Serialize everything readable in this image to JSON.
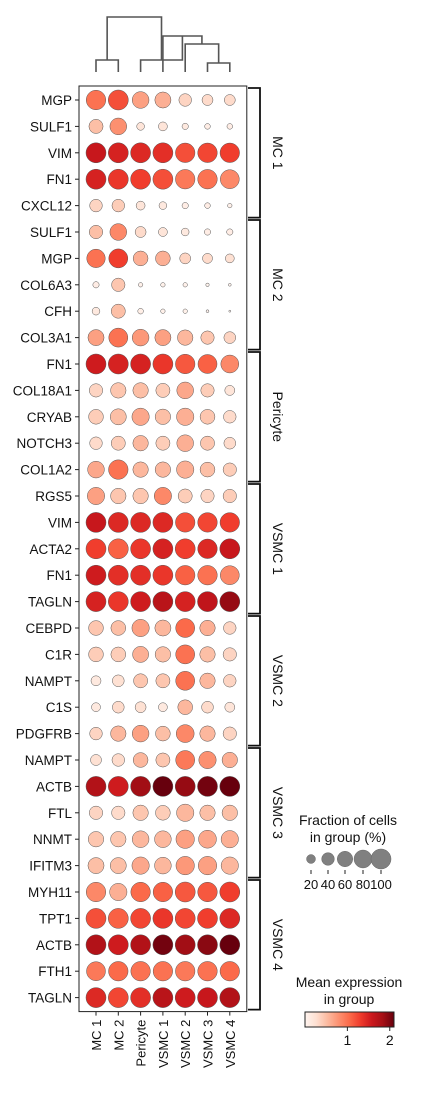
{
  "chart_data": {
    "type": "dotplot",
    "title": "",
    "columns": [
      "MC 1",
      "MC 2",
      "Pericyte",
      "VSMC 1",
      "VSMC 2",
      "VSMC 3",
      "VSMC 4"
    ],
    "dendrogram": "((MC 1, MC 2), (Pericyte, (VSMC 1, (VSMC 2, (VSMC 3, VSMC 4)))))",
    "groups": [
      {
        "name": "MC 1",
        "genes": [
          "MGP",
          "SULF1",
          "VIM",
          "FN1",
          "CXCL12"
        ]
      },
      {
        "name": "MC 2",
        "genes": [
          "SULF1",
          "MGP",
          "COL6A3",
          "CFH",
          "COL3A1"
        ]
      },
      {
        "name": "Pericyte",
        "genes": [
          "FN1",
          "COL18A1",
          "CRYAB",
          "NOTCH3",
          "COL1A2"
        ]
      },
      {
        "name": "VSMC 1",
        "genes": [
          "RGS5",
          "VIM",
          "ACTA2",
          "FN1",
          "TAGLN"
        ]
      },
      {
        "name": "VSMC 2",
        "genes": [
          "CEBPD",
          "C1R",
          "NAMPT",
          "C1S",
          "PDGFRB"
        ]
      },
      {
        "name": "VSMC 3",
        "genes": [
          "NAMPT",
          "ACTB",
          "FTL",
          "NNMT",
          "IFITM3"
        ]
      },
      {
        "name": "VSMC 4",
        "genes": [
          "MYH11",
          "TPT1",
          "ACTB",
          "FTH1",
          "TAGLN"
        ]
      }
    ],
    "fraction_percent": [
      [
        95,
        100,
        70,
        65,
        40,
        30,
        30
      ],
      [
        50,
        70,
        15,
        20,
        10,
        8,
        8
      ],
      [
        100,
        100,
        100,
        100,
        95,
        95,
        95
      ],
      [
        100,
        100,
        100,
        100,
        95,
        95,
        90
      ],
      [
        40,
        40,
        20,
        15,
        10,
        8,
        5
      ],
      [
        45,
        70,
        30,
        20,
        15,
        10,
        10
      ],
      [
        85,
        90,
        55,
        55,
        30,
        25,
        20
      ],
      [
        10,
        45,
        5,
        5,
        5,
        3,
        2
      ],
      [
        15,
        50,
        8,
        5,
        5,
        2,
        1
      ],
      [
        65,
        90,
        70,
        65,
        60,
        45,
        35
      ],
      [
        100,
        100,
        100,
        100,
        95,
        90,
        80
      ],
      [
        45,
        60,
        60,
        50,
        70,
        45,
        25
      ],
      [
        55,
        65,
        75,
        60,
        75,
        55,
        40
      ],
      [
        40,
        50,
        60,
        50,
        70,
        50,
        35
      ],
      [
        70,
        95,
        60,
        60,
        75,
        55,
        45
      ],
      [
        75,
        60,
        60,
        75,
        50,
        45,
        45
      ],
      [
        100,
        100,
        100,
        100,
        95,
        95,
        95
      ],
      [
        100,
        100,
        100,
        100,
        100,
        95,
        100
      ],
      [
        100,
        100,
        100,
        100,
        95,
        95,
        90
      ],
      [
        100,
        100,
        100,
        100,
        100,
        100,
        100
      ],
      [
        55,
        55,
        75,
        65,
        90,
        60,
        40
      ],
      [
        55,
        55,
        65,
        60,
        90,
        60,
        45
      ],
      [
        25,
        35,
        50,
        50,
        90,
        60,
        40
      ],
      [
        20,
        35,
        30,
        20,
        55,
        35,
        25
      ],
      [
        40,
        60,
        70,
        55,
        80,
        60,
        45
      ],
      [
        30,
        40,
        55,
        50,
        90,
        75,
        60
      ],
      [
        100,
        100,
        100,
        100,
        100,
        100,
        100
      ],
      [
        45,
        45,
        60,
        55,
        75,
        60,
        60
      ],
      [
        60,
        60,
        70,
        70,
        85,
        80,
        75
      ],
      [
        65,
        65,
        75,
        70,
        85,
        85,
        75
      ],
      [
        95,
        75,
        95,
        95,
        100,
        95,
        100
      ],
      [
        100,
        100,
        100,
        100,
        100,
        100,
        100
      ],
      [
        100,
        100,
        100,
        100,
        100,
        100,
        100
      ],
      [
        90,
        95,
        95,
        95,
        95,
        95,
        95
      ],
      [
        100,
        100,
        100,
        100,
        100,
        100,
        100
      ]
    ],
    "mean_expression": [
      [
        1.0,
        1.2,
        0.7,
        0.6,
        0.35,
        0.3,
        0.3
      ],
      [
        0.5,
        0.8,
        0.2,
        0.2,
        0.15,
        0.1,
        0.1
      ],
      [
        1.6,
        1.5,
        1.45,
        1.4,
        1.2,
        1.25,
        1.3
      ],
      [
        1.5,
        1.35,
        1.3,
        1.2,
        0.95,
        1.0,
        0.85
      ],
      [
        0.35,
        0.4,
        0.2,
        0.15,
        0.1,
        0.1,
        0.05
      ],
      [
        0.5,
        0.85,
        0.3,
        0.2,
        0.15,
        0.1,
        0.1
      ],
      [
        1.0,
        1.3,
        0.6,
        0.6,
        0.35,
        0.3,
        0.25
      ],
      [
        0.1,
        0.45,
        0.05,
        0.05,
        0.05,
        0.03,
        0.02
      ],
      [
        0.15,
        0.5,
        0.08,
        0.05,
        0.05,
        0.02,
        0.01
      ],
      [
        0.7,
        1.0,
        0.75,
        0.7,
        0.55,
        0.45,
        0.35
      ],
      [
        1.55,
        1.5,
        1.5,
        1.35,
        1.15,
        1.1,
        0.85
      ],
      [
        0.35,
        0.45,
        0.5,
        0.4,
        0.65,
        0.4,
        0.2
      ],
      [
        0.4,
        0.5,
        0.65,
        0.5,
        0.6,
        0.45,
        0.3
      ],
      [
        0.3,
        0.4,
        0.55,
        0.4,
        0.6,
        0.45,
        0.3
      ],
      [
        0.65,
        1.0,
        0.55,
        0.55,
        0.6,
        0.5,
        0.4
      ],
      [
        0.7,
        0.45,
        0.45,
        0.85,
        0.4,
        0.35,
        0.4
      ],
      [
        1.6,
        1.45,
        1.45,
        1.45,
        1.2,
        1.25,
        1.3
      ],
      [
        1.3,
        1.1,
        1.35,
        1.5,
        1.3,
        1.45,
        1.6
      ],
      [
        1.55,
        1.4,
        1.4,
        1.35,
        1.1,
        1.0,
        0.85
      ],
      [
        1.5,
        1.35,
        1.55,
        1.7,
        1.5,
        1.65,
        1.9
      ],
      [
        0.45,
        0.5,
        0.7,
        0.55,
        1.05,
        0.6,
        0.35
      ],
      [
        0.4,
        0.4,
        0.6,
        0.5,
        1.0,
        0.5,
        0.35
      ],
      [
        0.15,
        0.25,
        0.45,
        0.45,
        1.0,
        0.55,
        0.35
      ],
      [
        0.15,
        0.3,
        0.25,
        0.15,
        0.55,
        0.3,
        0.2
      ],
      [
        0.35,
        0.55,
        0.7,
        0.5,
        0.85,
        0.55,
        0.35
      ],
      [
        0.25,
        0.3,
        0.55,
        0.45,
        0.95,
        0.8,
        0.6
      ],
      [
        1.75,
        1.55,
        1.85,
        2.1,
        1.9,
        2.05,
        2.25
      ],
      [
        0.35,
        0.3,
        0.45,
        0.4,
        0.55,
        0.5,
        0.5
      ],
      [
        0.45,
        0.45,
        0.55,
        0.55,
        0.7,
        0.65,
        0.6
      ],
      [
        0.5,
        0.5,
        0.65,
        0.55,
        0.75,
        0.7,
        0.55
      ],
      [
        0.85,
        0.6,
        1.05,
        1.1,
        1.15,
        1.15,
        1.3
      ],
      [
        1.2,
        1.1,
        1.25,
        1.35,
        1.25,
        1.3,
        1.45
      ],
      [
        1.75,
        1.55,
        1.75,
        2.05,
        1.85,
        1.95,
        2.2
      ],
      [
        0.95,
        1.05,
        1.0,
        1.0,
        0.95,
        1.0,
        1.05
      ],
      [
        1.45,
        1.25,
        1.4,
        1.7,
        1.55,
        1.6,
        1.75
      ]
    ],
    "size_legend": {
      "title_line1": "Fraction of cells",
      "title_line2": "in group (%)",
      "values": [
        20,
        40,
        60,
        80,
        100
      ],
      "labels": [
        "20",
        "40",
        "60",
        "80",
        "100"
      ]
    },
    "color_legend": {
      "title_line1": "Mean expression",
      "title_line2": "in group",
      "range": [
        0,
        2.1
      ],
      "ticks": [
        1,
        2
      ],
      "tick_labels": [
        "1",
        "2"
      ],
      "colormap": "Reds"
    }
  }
}
